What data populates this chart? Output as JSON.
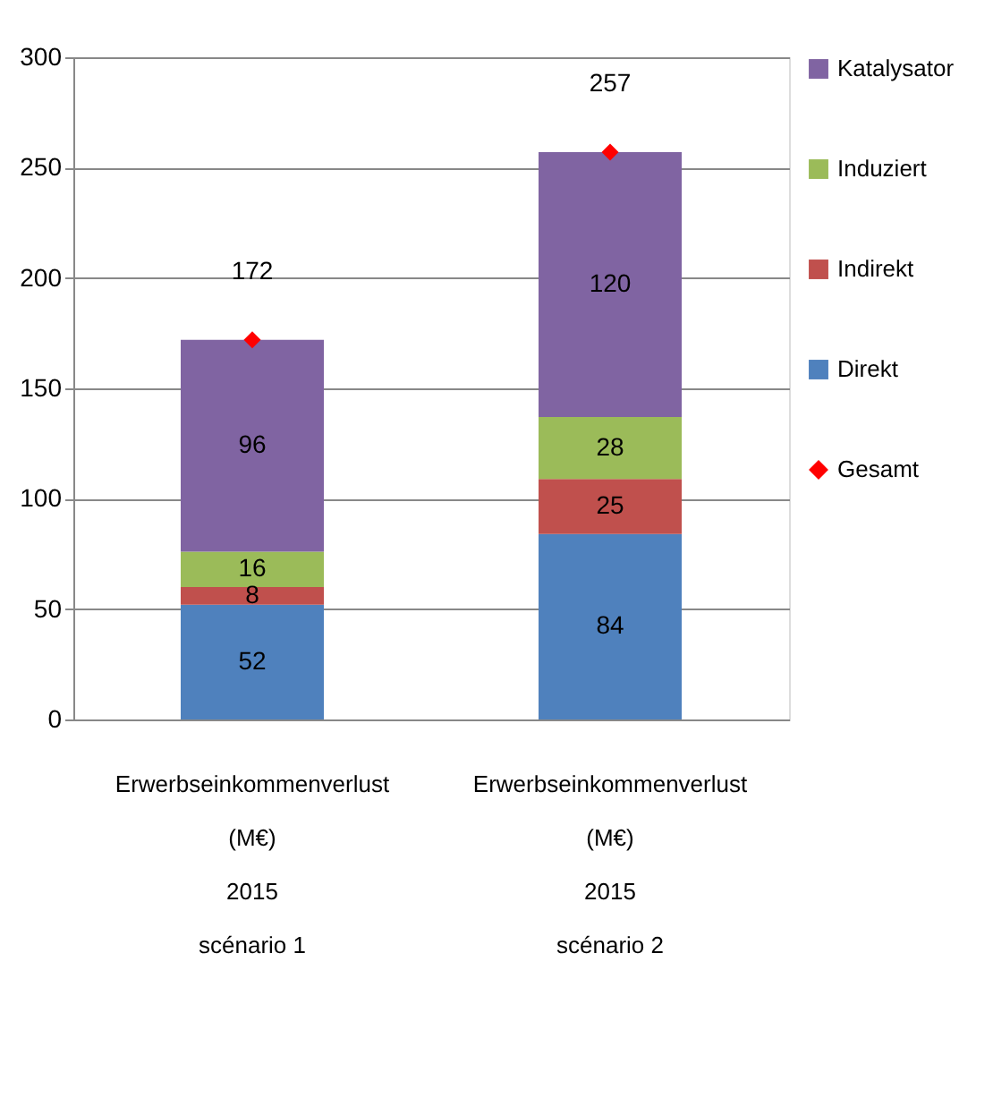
{
  "chart_data": {
    "type": "bar",
    "stacked": true,
    "categories": [
      "Erwerbseinkommenverlust\n(M€)\n2015\nscénario 1",
      "Erwerbseinkommenverlust\n(M€)\n2015\nscénario 2"
    ],
    "series": [
      {
        "name": "Direkt",
        "color": "#4f81bd",
        "values": [
          52,
          84
        ]
      },
      {
        "name": "Indirekt",
        "color": "#c0504d",
        "values": [
          8,
          25
        ]
      },
      {
        "name": "Induziert",
        "color": "#9bbb59",
        "values": [
          16,
          28
        ]
      },
      {
        "name": "Katalysator",
        "color": "#8064a2",
        "values": [
          96,
          120
        ]
      },
      {
        "name": "Gesamt",
        "type": "scatter",
        "marker": "diamond",
        "color": "#ff0000",
        "values": [
          172,
          257
        ]
      }
    ],
    "ylim": [
      0,
      300
    ],
    "yticks": [
      0,
      50,
      100,
      150,
      200,
      250,
      300
    ],
    "grid": "y",
    "legend": "right",
    "data_labels": true
  }
}
